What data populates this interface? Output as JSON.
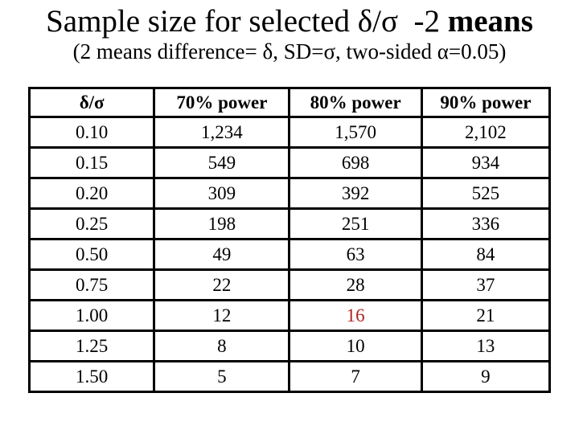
{
  "colors": {
    "background": "#ffffff",
    "text": "#000000",
    "border": "#000000",
    "highlight_red": "#b22222"
  },
  "title": {
    "regular": "Sample size for selected δ/σ  -2 ",
    "bold_word": "means"
  },
  "subtitle": "(2 means difference= δ, SD=σ, two-sided α=0.05)",
  "table": {
    "headers": [
      "δ/σ",
      "70% power",
      "80% power",
      "90% power"
    ],
    "rows": [
      {
        "ratio": "0.10",
        "p70": "1,234",
        "p80": "1,570",
        "p90": "2,102"
      },
      {
        "ratio": "0.15",
        "p70": "549",
        "p80": "698",
        "p90": "934"
      },
      {
        "ratio": "0.20",
        "p70": "309",
        "p80": "392",
        "p90": "525"
      },
      {
        "ratio": "0.25",
        "p70": "198",
        "p80": "251",
        "p90": "336"
      },
      {
        "ratio": "0.50",
        "p70": "49",
        "p80": "63",
        "p90": "84"
      },
      {
        "ratio": "0.75",
        "p70": "22",
        "p80": "28",
        "p90": "37"
      },
      {
        "ratio": "1.00",
        "p70": "12",
        "p80": "16",
        "p90": "21"
      },
      {
        "ratio": "1.25",
        "p70": "8",
        "p80": "10",
        "p90": "13"
      },
      {
        "ratio": "1.50",
        "p70": "5",
        "p80": "7",
        "p90": "9"
      }
    ],
    "highlight": {
      "ratio": "1.00",
      "column": "80% power",
      "value": "16"
    }
  }
}
